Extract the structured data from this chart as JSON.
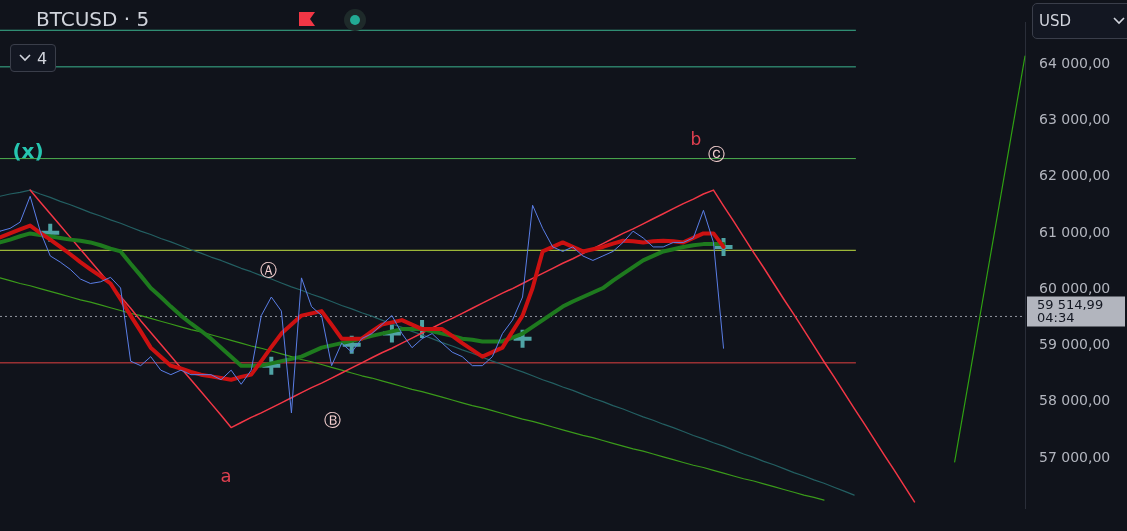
{
  "chart_data": {
    "type": "line",
    "title": "BTCUSD · 5",
    "categories": [
      null,
      null,
      null,
      null,
      null,
      null,
      null,
      null,
      null,
      null,
      null,
      null,
      null,
      null,
      null,
      null,
      null,
      null,
      null,
      null,
      null,
      null,
      null,
      null,
      null,
      null,
      null,
      null,
      null,
      null,
      null,
      null,
      null,
      null,
      null,
      null,
      null,
      null,
      null,
      null,
      null,
      null,
      null,
      null,
      null,
      null,
      null,
      null,
      null,
      null,
      null,
      null,
      null,
      null,
      null,
      null,
      null,
      null,
      null,
      null,
      null,
      null,
      null,
      null,
      null,
      null,
      null,
      null,
      null,
      null,
      null,
      null,
      null,
      null,
      null,
      null,
      null,
      null,
      null,
      null,
      null,
      null,
      null,
      null,
      null,
      null,
      null,
      null,
      null,
      null,
      null,
      null,
      null,
      null,
      null,
      null,
      null,
      null,
      null,
      null,
      null,
      null,
      null
    ],
    "series": [
      {
        "type": "line",
        "color": "#5a7ee6",
        "values": [
          61030,
          61080,
          61190,
          61650,
          61030,
          60590,
          60480,
          60350,
          60180,
          60100,
          60130,
          60210,
          60020,
          58720,
          58640,
          58800,
          58560,
          58480,
          58560,
          58480,
          58480,
          58480,
          58390,
          58560,
          58310,
          58560,
          59530,
          59860,
          59610,
          57800,
          60200,
          59690,
          59530,
          58640,
          59040,
          58880,
          59120,
          59210,
          59370,
          59530,
          59210,
          58960,
          59120,
          59210,
          59040,
          58880,
          58800,
          58640,
          58640,
          58800,
          59210,
          59450,
          59860,
          61490,
          61080,
          60750,
          60670,
          60750,
          60590,
          60510,
          60590,
          60670,
          60830,
          61030,
          60910,
          60750,
          60750,
          60830,
          60830,
          60910,
          61400,
          60830,
          58950,
          null,
          null,
          null,
          null,
          null,
          null,
          null,
          null,
          null,
          null,
          null,
          null,
          null,
          null,
          null,
          null,
          null,
          null,
          null,
          null,
          null,
          null,
          null,
          null,
          null,
          null,
          null,
          null,
          null,
          null
        ]
      },
      {
        "type": "line",
        "color": "#cc1111",
        "values": [
          60920,
          60990,
          61060,
          61130,
          61000,
          60880,
          60750,
          60620,
          60480,
          60350,
          60230,
          60100,
          59820,
          59530,
          59250,
          58960,
          58800,
          58640,
          58590,
          58530,
          58480,
          58450,
          58420,
          58390,
          58440,
          58480,
          58720,
          58970,
          59210,
          59370,
          59530,
          59570,
          59610,
          59370,
          59120,
          59120,
          59120,
          59250,
          59370,
          59410,
          59450,
          59370,
          59290,
          59290,
          59290,
          59170,
          59040,
          58920,
          58800,
          58880,
          58960,
          59250,
          59530,
          60020,
          60670,
          60750,
          60830,
          60750,
          60670,
          60710,
          60750,
          60810,
          60860,
          60850,
          60830,
          60850,
          60860,
          60850,
          60830,
          60910,
          60990,
          60990,
          60750,
          null,
          null,
          null,
          null,
          null,
          null,
          null,
          null,
          null,
          null,
          null,
          null,
          null,
          null,
          null,
          null,
          null,
          null,
          null,
          null,
          null,
          null,
          null,
          null,
          null,
          null,
          null,
          null,
          null,
          null
        ]
      },
      {
        "type": "line",
        "color": "#1e7a1e",
        "values": [
          60830,
          60880,
          60940,
          60990,
          60960,
          60940,
          60910,
          60880,
          60860,
          60830,
          60780,
          60720,
          60670,
          60450,
          60240,
          60020,
          59860,
          59690,
          59530,
          59390,
          59260,
          59120,
          58960,
          58800,
          58640,
          58640,
          58640,
          58680,
          58720,
          58760,
          58800,
          58880,
          58960,
          59000,
          59040,
          59080,
          59120,
          59170,
          59210,
          59250,
          59290,
          59290,
          59290,
          59250,
          59210,
          59170,
          59120,
          59100,
          59070,
          59070,
          59070,
          59140,
          59210,
          59330,
          59450,
          59570,
          59690,
          59780,
          59860,
          59940,
          60020,
          60150,
          60270,
          60390,
          60510,
          60590,
          60670,
          60710,
          60750,
          60780,
          60800,
          60800,
          60800,
          null,
          null,
          null,
          null,
          null,
          null,
          null,
          null,
          null,
          null,
          null,
          null,
          null,
          null,
          null,
          null,
          null,
          null,
          null,
          null,
          null,
          null,
          null,
          null,
          null,
          null,
          null,
          null,
          null,
          null
        ]
      },
      {
        "type": "line",
        "color": "#f23645",
        "values": [
          null,
          null,
          null,
          61760,
          61550,
          61340,
          61130,
          60920,
          60710,
          60500,
          60290,
          60080,
          59870,
          59660,
          59440,
          59230,
          59020,
          58810,
          58600,
          58390,
          58180,
          57970,
          57760,
          57540,
          57630,
          57720,
          57800,
          57890,
          57980,
          58070,
          58160,
          58250,
          58330,
          58420,
          58510,
          58600,
          58690,
          58780,
          58870,
          58950,
          59040,
          59130,
          59220,
          59310,
          59400,
          59480,
          59570,
          59660,
          59750,
          59840,
          59930,
          60010,
          60100,
          60190,
          60280,
          60370,
          60460,
          60540,
          60630,
          60720,
          60810,
          60900,
          60990,
          61070,
          61160,
          61250,
          61340,
          61430,
          61520,
          61600,
          61690,
          61760,
          61480,
          61210,
          60930,
          60650,
          60380,
          60100,
          59820,
          59550,
          59270,
          58990,
          58710,
          58440,
          58160,
          57880,
          57610,
          57330,
          57050,
          56780,
          56500,
          56220,
          null,
          null,
          null,
          null,
          null,
          null,
          null,
          null,
          null,
          null,
          null
        ]
      },
      {
        "type": "line",
        "color": "#235f62",
        "values": [
          61650,
          61690,
          61720,
          61760,
          61690,
          61630,
          61560,
          61500,
          61430,
          61360,
          61300,
          61230,
          61170,
          61100,
          61030,
          60970,
          60900,
          60840,
          60770,
          60700,
          60640,
          60570,
          60510,
          60440,
          60370,
          60310,
          60240,
          60180,
          60110,
          60040,
          59980,
          59910,
          59850,
          59780,
          59710,
          59650,
          59580,
          59520,
          59450,
          59380,
          59320,
          59250,
          59190,
          59120,
          59050,
          58990,
          58920,
          58860,
          58790,
          58720,
          58660,
          58590,
          58530,
          58460,
          58390,
          58330,
          58260,
          58200,
          58130,
          58060,
          58000,
          57930,
          57870,
          57800,
          57730,
          57670,
          57600,
          57540,
          57470,
          57400,
          57340,
          57270,
          57210,
          57140,
          57070,
          57010,
          56940,
          56880,
          56810,
          56740,
          56680,
          56610,
          56550,
          56480,
          56410,
          56340,
          null,
          null,
          null,
          null,
          null,
          null,
          null,
          null,
          null,
          null,
          null,
          null,
          null,
          null,
          null,
          null,
          null
        ]
      },
      {
        "type": "line",
        "color": "#3a9a1a",
        "values": [
          60200,
          60150,
          60100,
          60060,
          60010,
          59960,
          59910,
          59860,
          59810,
          59770,
          59720,
          59670,
          59620,
          59570,
          59530,
          59480,
          59430,
          59380,
          59330,
          59280,
          59240,
          59190,
          59140,
          59090,
          59040,
          58990,
          58950,
          58900,
          58850,
          58800,
          58750,
          58710,
          58660,
          58610,
          58560,
          58510,
          58460,
          58420,
          58370,
          58320,
          58270,
          58220,
          58180,
          58130,
          58080,
          58030,
          57980,
          57930,
          57890,
          57840,
          57790,
          57740,
          57690,
          57650,
          57600,
          57550,
          57500,
          57450,
          57400,
          57360,
          57310,
          57260,
          57210,
          57160,
          57120,
          57070,
          57020,
          56970,
          56920,
          56870,
          56830,
          56780,
          56730,
          56680,
          56630,
          56590,
          56540,
          56490,
          56440,
          56390,
          56340,
          56300,
          56250,
          null,
          null,
          null,
          null,
          null,
          null,
          null,
          null,
          null,
          null,
          null,
          null,
          null,
          null,
          null,
          null,
          null,
          null,
          null,
          null
        ]
      },
      {
        "type": "line",
        "color": "#2fa012",
        "values": [
          null,
          null,
          null,
          null,
          null,
          null,
          null,
          null,
          null,
          null,
          null,
          null,
          null,
          null,
          null,
          null,
          null,
          null,
          null,
          null,
          null,
          null,
          null,
          null,
          null,
          null,
          null,
          null,
          null,
          null,
          null,
          null,
          null,
          null,
          null,
          null,
          null,
          null,
          null,
          null,
          null,
          null,
          null,
          null,
          null,
          null,
          null,
          null,
          null,
          null,
          null,
          null,
          null,
          null,
          null,
          null,
          null,
          null,
          null,
          null,
          null,
          null,
          null,
          null,
          null,
          null,
          null,
          null,
          null,
          null,
          null,
          null,
          null,
          null,
          null,
          null,
          null,
          null,
          null,
          null,
          null,
          null,
          null,
          null,
          null,
          null,
          null,
          null,
          null,
          null,
          null,
          null,
          null,
          null,
          null,
          56930,
          57960,
          58990,
          60020,
          61050,
          62080,
          63110,
          64140
        ]
      },
      {
        "type": "scatter",
        "color": "#4fa3a5",
        "marker": "cross",
        "values": [
          null,
          null,
          null,
          null,
          null,
          61000,
          null,
          null,
          null,
          null,
          null,
          null,
          null,
          null,
          null,
          null,
          null,
          null,
          null,
          null,
          null,
          null,
          null,
          null,
          null,
          null,
          null,
          58640,
          null,
          null,
          null,
          null,
          null,
          null,
          null,
          59010,
          null,
          null,
          null,
          59210,
          null,
          null,
          59290,
          null,
          null,
          null,
          null,
          null,
          null,
          null,
          null,
          null,
          59120,
          null,
          null,
          null,
          null,
          null,
          null,
          null,
          null,
          null,
          null,
          null,
          null,
          null,
          null,
          null,
          null,
          null,
          null,
          null,
          60750,
          null,
          null,
          null,
          null,
          null,
          null,
          null,
          null,
          null,
          null,
          null,
          null,
          null,
          null,
          null,
          null,
          null,
          null,
          null,
          null,
          null,
          null,
          null,
          null,
          null,
          null,
          null,
          null,
          null,
          null
        ]
      }
    ],
    "ylim": [
      56100,
      64740
    ],
    "yticks": [
      {
        "value": 57000,
        "label": "57 000,00"
      },
      {
        "value": 58000,
        "label": "58 000,00"
      },
      {
        "value": 59000,
        "label": "59 000,00"
      },
      {
        "value": 60000,
        "label": "60 000,00"
      },
      {
        "value": 61000,
        "label": "61 000,00"
      },
      {
        "value": 62000,
        "label": "62 000,00"
      },
      {
        "value": 63000,
        "label": "63 000,00"
      },
      {
        "value": 64000,
        "label": "64 000,00"
      }
    ],
    "ref_lines": [
      {
        "axis": "y",
        "value": 64600,
        "color": "#3bb38e"
      },
      {
        "axis": "y",
        "value": 63950,
        "color": "#3bb38e"
      },
      {
        "axis": "y",
        "value": 62320,
        "color": "#4caf50"
      },
      {
        "axis": "y",
        "value": 60690,
        "color": "#c0e040"
      },
      {
        "axis": "y",
        "value": 58690,
        "color": "#e04040"
      },
      {
        "axis": "y",
        "value": 59514.99,
        "label": "59 514,99",
        "color": "#9598a1",
        "line_style": "dotted"
      }
    ],
    "annotations": [
      "(x)",
      "Ⓐ",
      "Ⓑ",
      "a",
      "b",
      "ⓒ",
      "04:34",
      "4",
      "USD"
    ],
    "grid": false,
    "legend": false,
    "tick_labels": "y",
    "line_style": "solid"
  }
}
